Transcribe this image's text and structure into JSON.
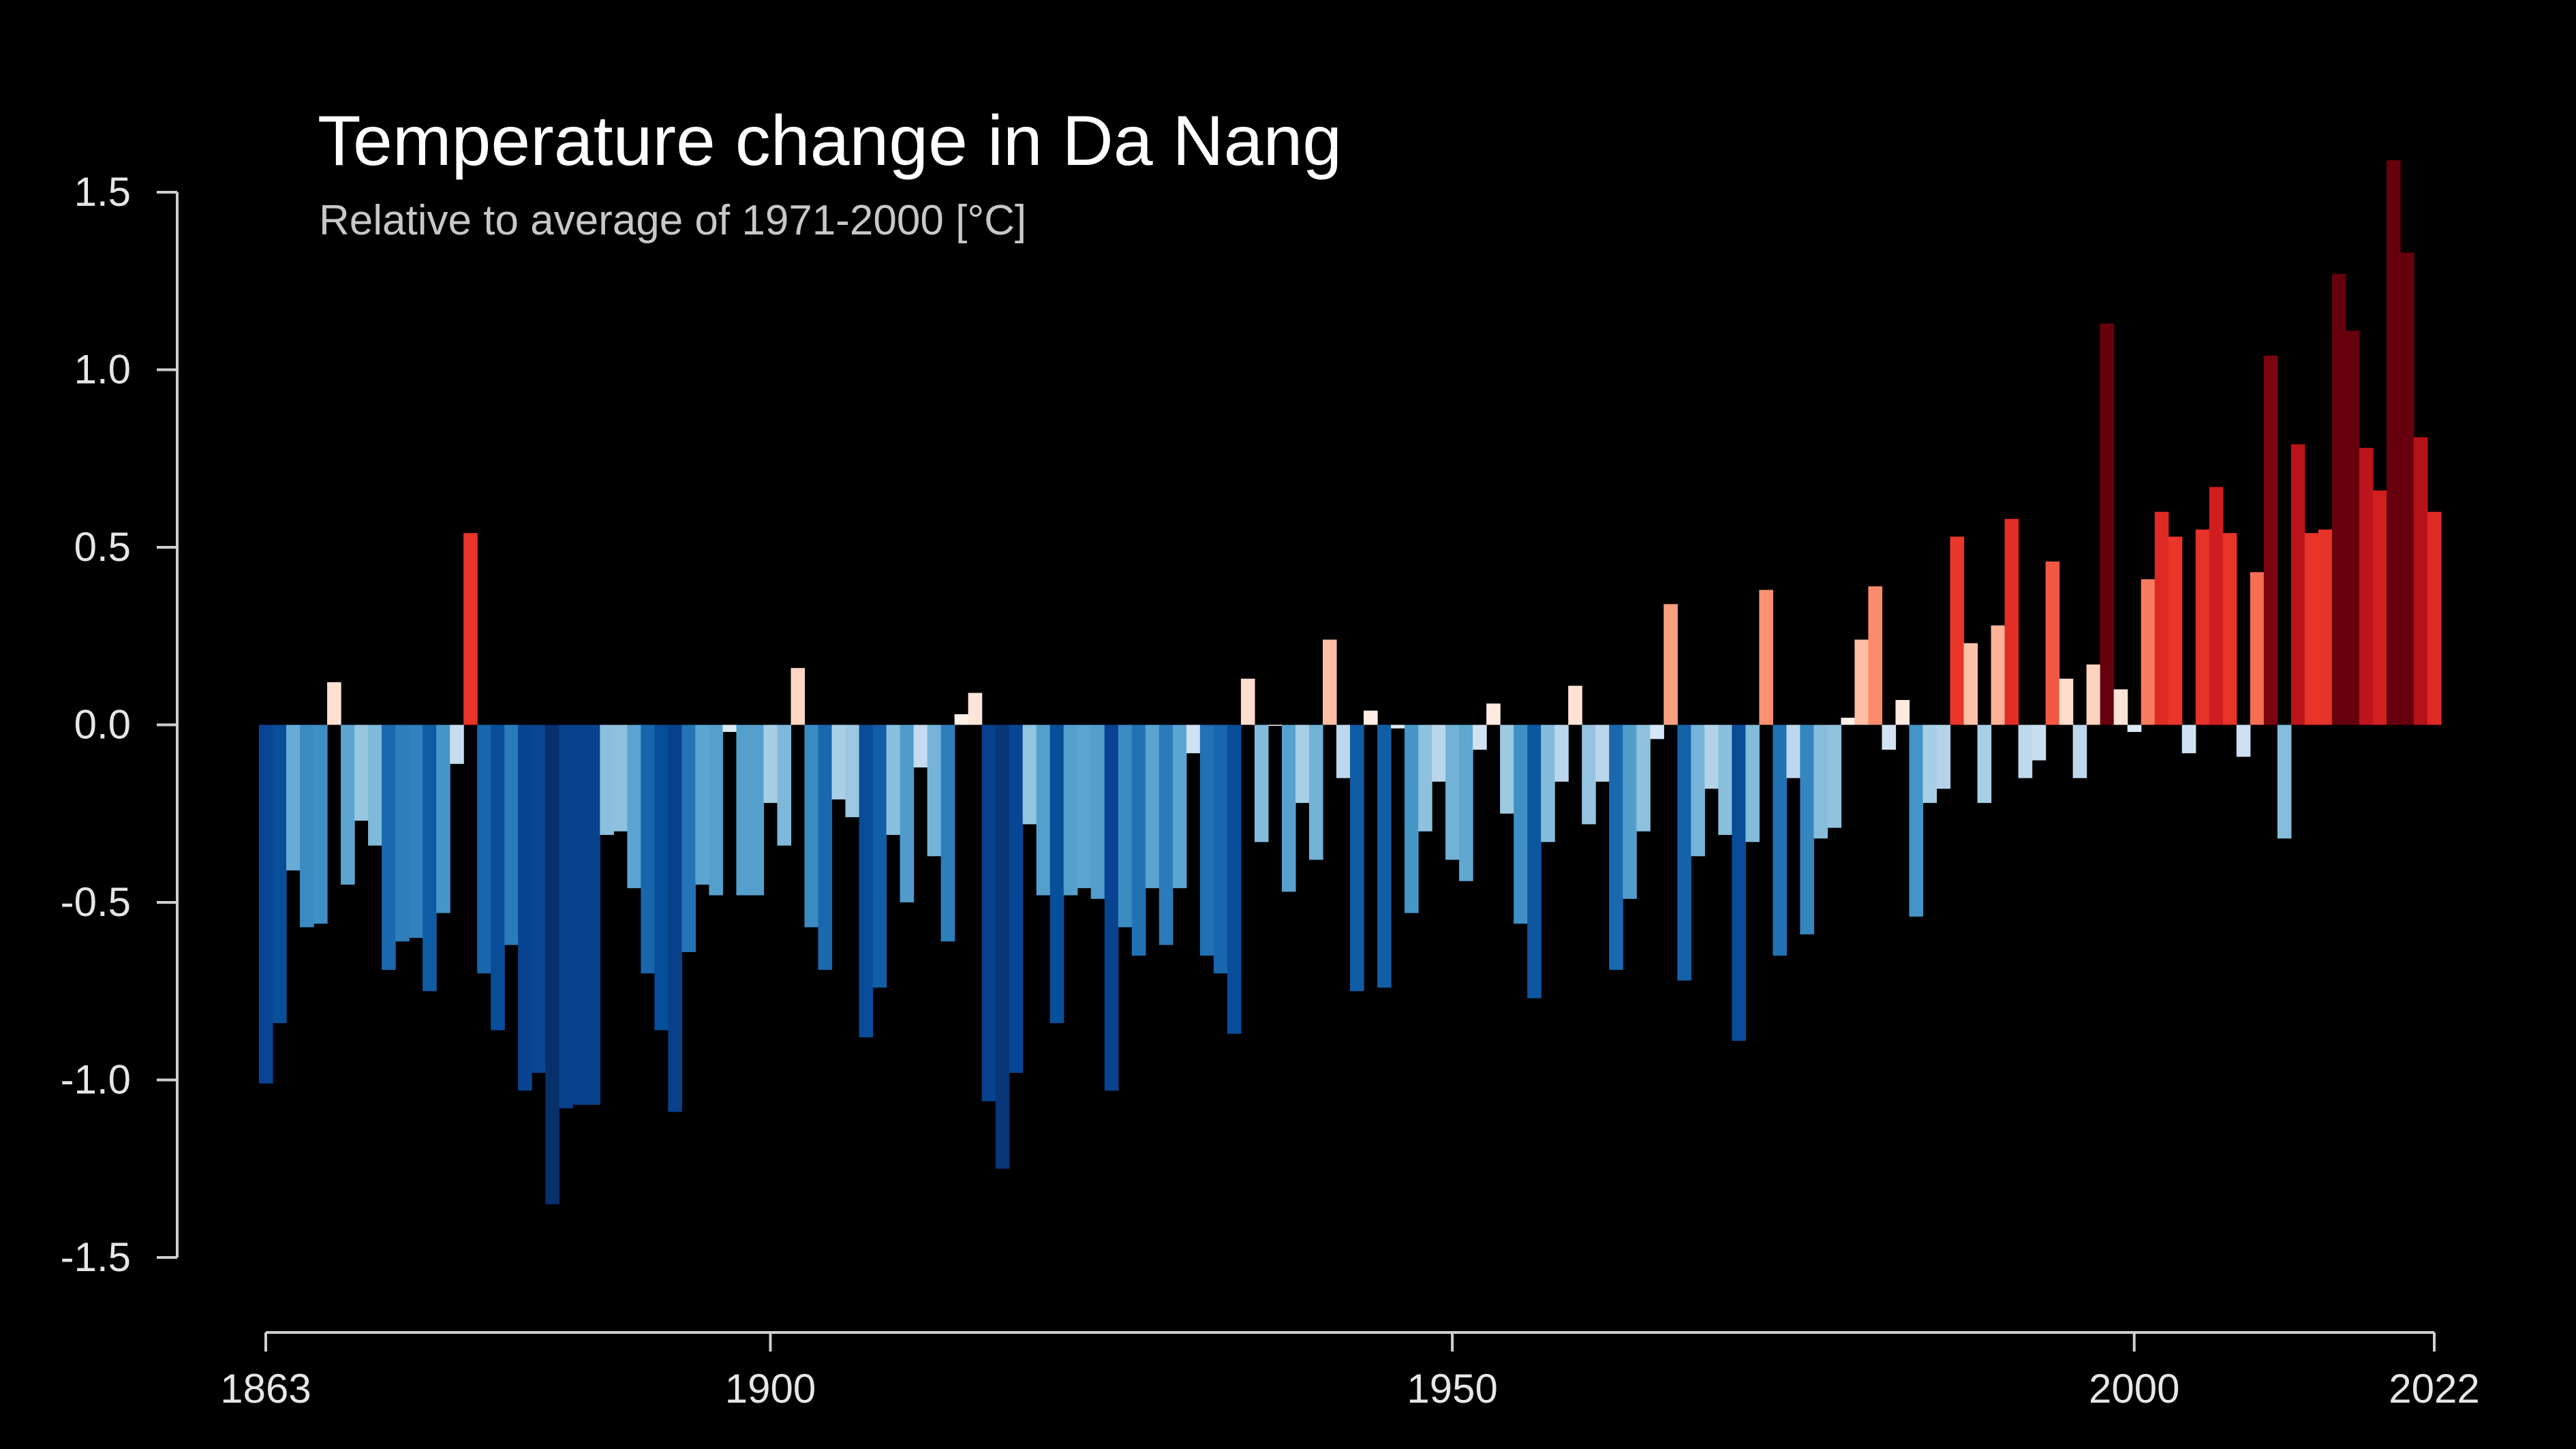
{
  "chart_data": {
    "type": "bar",
    "title": "Temperature change in Da Nang",
    "subtitle": "Relative to average of 1971-2000  [°C]",
    "xlabel": "",
    "ylabel": "",
    "ylim": [
      -1.5,
      1.5
    ],
    "yticks": [
      "1.5",
      "1.0",
      "0.5",
      "0.0",
      "-0.5",
      "-1.0",
      "-1.5"
    ],
    "xticks": [
      "1863",
      "1900",
      "1950",
      "2000",
      "2022"
    ],
    "grid": false,
    "legend": "none",
    "x_start": 1863,
    "x_end": 2022,
    "values": [
      -1.01,
      -0.84,
      -0.41,
      -0.57,
      -0.56,
      0.12,
      -0.45,
      -0.27,
      -0.34,
      -0.69,
      -0.61,
      -0.6,
      -0.75,
      -0.53,
      -0.11,
      0.54,
      -0.7,
      -0.86,
      -0.62,
      -1.03,
      -0.98,
      -1.35,
      -1.08,
      -1.07,
      -1.07,
      -0.31,
      -0.3,
      -0.46,
      -0.7,
      -0.86,
      -1.09,
      -0.64,
      -0.45,
      -0.48,
      -0.02,
      -0.48,
      -0.48,
      -0.22,
      -0.34,
      0.16,
      -0.57,
      -0.69,
      -0.21,
      -0.26,
      -0.88,
      -0.74,
      -0.31,
      -0.5,
      -0.12,
      -0.37,
      -0.61,
      0.03,
      0.09,
      -1.06,
      -1.25,
      -0.98,
      -0.28,
      -0.48,
      -0.84,
      -0.48,
      -0.46,
      -0.49,
      -1.03,
      -0.57,
      -0.65,
      -0.46,
      -0.62,
      -0.46,
      -0.08,
      -0.65,
      -0.7,
      -0.87,
      0.13,
      -0.33,
      0.0,
      -0.47,
      -0.22,
      -0.38,
      0.24,
      -0.15,
      -0.75,
      0.04,
      -0.74,
      -0.01,
      -0.53,
      -0.3,
      -0.16,
      -0.38,
      -0.44,
      -0.07,
      0.06,
      -0.25,
      -0.56,
      -0.77,
      -0.33,
      -0.16,
      0.11,
      -0.28,
      -0.16,
      -0.69,
      -0.49,
      -0.3,
      -0.04,
      0.34,
      -0.72,
      -0.37,
      -0.18,
      -0.31,
      -0.89,
      -0.33,
      0.38,
      -0.65,
      -0.15,
      -0.59,
      -0.32,
      -0.29,
      0.02,
      0.24,
      0.39,
      -0.07,
      0.07,
      -0.54,
      -0.22,
      -0.18,
      0.53,
      0.23,
      -0.22,
      0.28,
      0.58,
      -0.15,
      -0.1,
      0.46,
      0.13,
      -0.15,
      0.17,
      1.13,
      0.1,
      -0.02,
      0.41,
      0.6,
      0.53,
      -0.08,
      0.55,
      0.67,
      0.54,
      -0.09,
      0.43,
      1.04,
      -0.32,
      0.79,
      0.54,
      0.55,
      1.27,
      1.11,
      0.78,
      0.66,
      1.59,
      1.33,
      0.81,
      0.6
    ]
  }
}
